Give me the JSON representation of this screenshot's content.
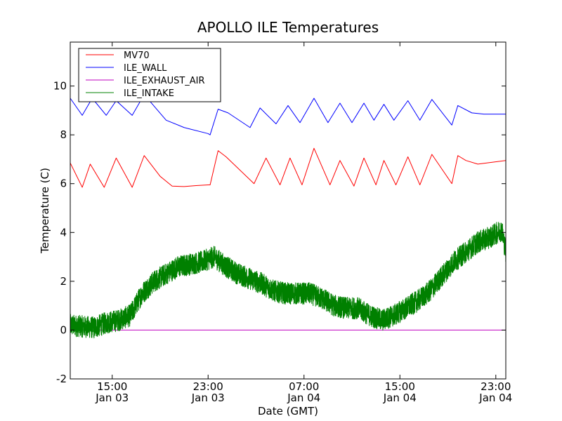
{
  "chart_data": {
    "type": "line",
    "title": "APOLLO ILE Temperatures",
    "xlabel": "Date (GMT)",
    "ylabel": "Temperature (C)",
    "xlim": [
      "2016-01-03 11:30",
      "2016-01-04 23:50"
    ],
    "ylim": [
      -2,
      11.8
    ],
    "yticks": [
      -2,
      0,
      2,
      4,
      6,
      8,
      10
    ],
    "ytick_labels": [
      "-2",
      "0",
      "2",
      "4",
      "6",
      "8",
      "10"
    ],
    "xticks": [
      {
        "t": "2016-01-03 15:00",
        "time": "15:00",
        "date": "Jan 03"
      },
      {
        "t": "2016-01-03 23:00",
        "time": "23:00",
        "date": "Jan 03"
      },
      {
        "t": "2016-01-04 07:00",
        "time": "07:00",
        "date": "Jan 04"
      },
      {
        "t": "2016-01-04 15:00",
        "time": "15:00",
        "date": "Jan 04"
      },
      {
        "t": "2016-01-04 23:00",
        "time": "23:00",
        "date": "Jan 04"
      }
    ],
    "legend_position": "top-left",
    "series": [
      {
        "name": "MV70",
        "color": "#ff0000",
        "points": [
          [
            "2016-01-03 11:30",
            6.85
          ],
          [
            "2016-01-03 12:30",
            5.85
          ],
          [
            "2016-01-03 13:10",
            6.8
          ],
          [
            "2016-01-03 14:20",
            5.85
          ],
          [
            "2016-01-03 15:20",
            7.05
          ],
          [
            "2016-01-03 16:40",
            5.85
          ],
          [
            "2016-01-03 17:40",
            7.15
          ],
          [
            "2016-01-03 19:00",
            6.3
          ],
          [
            "2016-01-03 20:00",
            5.9
          ],
          [
            "2016-01-03 21:00",
            5.88
          ],
          [
            "2016-01-03 22:00",
            5.92
          ],
          [
            "2016-01-03 23:00",
            5.95
          ],
          [
            "2016-01-03 23:10",
            5.95
          ],
          [
            "2016-01-03 23:50",
            7.35
          ],
          [
            "2016-01-04 00:30",
            7.1
          ],
          [
            "2016-01-04 02:50",
            6.0
          ],
          [
            "2016-01-04 03:50",
            7.05
          ],
          [
            "2016-01-04 05:00",
            5.95
          ],
          [
            "2016-01-04 05:50",
            7.05
          ],
          [
            "2016-01-04 06:50",
            5.95
          ],
          [
            "2016-01-04 07:50",
            7.45
          ],
          [
            "2016-01-04 09:10",
            5.95
          ],
          [
            "2016-01-04 10:00",
            6.95
          ],
          [
            "2016-01-04 11:10",
            5.9
          ],
          [
            "2016-01-04 12:00",
            7.05
          ],
          [
            "2016-01-04 13:00",
            5.95
          ],
          [
            "2016-01-04 13:40",
            6.95
          ],
          [
            "2016-01-04 14:40",
            5.95
          ],
          [
            "2016-01-04 15:40",
            7.1
          ],
          [
            "2016-01-04 16:40",
            5.95
          ],
          [
            "2016-01-04 17:40",
            7.2
          ],
          [
            "2016-01-04 19:20",
            6.0
          ],
          [
            "2016-01-04 19:50",
            7.15
          ],
          [
            "2016-01-04 20:30",
            6.95
          ],
          [
            "2016-01-04 21:30",
            6.8
          ],
          [
            "2016-01-04 23:50",
            6.95
          ]
        ]
      },
      {
        "name": "ILE_WALL",
        "color": "#0000ff",
        "points": [
          [
            "2016-01-03 11:30",
            9.5
          ],
          [
            "2016-01-03 12:30",
            8.8
          ],
          [
            "2016-01-03 13:20",
            9.5
          ],
          [
            "2016-01-03 14:30",
            8.8
          ],
          [
            "2016-01-03 15:20",
            9.4
          ],
          [
            "2016-01-03 16:40",
            8.8
          ],
          [
            "2016-01-03 17:40",
            9.65
          ],
          [
            "2016-01-03 19:30",
            8.6
          ],
          [
            "2016-01-03 21:00",
            8.3
          ],
          [
            "2016-01-03 23:00",
            8.05
          ],
          [
            "2016-01-03 23:10",
            8.0
          ],
          [
            "2016-01-03 23:50",
            9.05
          ],
          [
            "2016-01-04 00:40",
            8.9
          ],
          [
            "2016-01-04 02:30",
            8.3
          ],
          [
            "2016-01-04 03:20",
            9.1
          ],
          [
            "2016-01-04 04:40",
            8.45
          ],
          [
            "2016-01-04 05:40",
            9.2
          ],
          [
            "2016-01-04 06:40",
            8.5
          ],
          [
            "2016-01-04 07:50",
            9.5
          ],
          [
            "2016-01-04 09:00",
            8.5
          ],
          [
            "2016-01-04 10:00",
            9.3
          ],
          [
            "2016-01-04 11:00",
            8.5
          ],
          [
            "2016-01-04 12:00",
            9.3
          ],
          [
            "2016-01-04 12:50",
            8.6
          ],
          [
            "2016-01-04 13:40",
            9.25
          ],
          [
            "2016-01-04 14:30",
            8.6
          ],
          [
            "2016-01-04 15:40",
            9.4
          ],
          [
            "2016-01-04 16:40",
            8.6
          ],
          [
            "2016-01-04 17:40",
            9.45
          ],
          [
            "2016-01-04 19:20",
            8.4
          ],
          [
            "2016-01-04 19:50",
            9.2
          ],
          [
            "2016-01-04 21:00",
            8.9
          ],
          [
            "2016-01-04 22:00",
            8.85
          ],
          [
            "2016-01-04 23:50",
            8.85
          ]
        ]
      },
      {
        "name": "ILE_EXHAUST_AIR",
        "color": "#bf00bf",
        "points": [
          [
            "2016-01-03 11:30",
            0.0
          ],
          [
            "2016-01-04 23:50",
            0.0
          ]
        ]
      },
      {
        "name": "ILE_INTAKE",
        "color": "#008000",
        "noise": 0.45,
        "points": [
          [
            "2016-01-03 11:30",
            0.2
          ],
          [
            "2016-01-03 12:30",
            0.15
          ],
          [
            "2016-01-03 13:30",
            0.1
          ],
          [
            "2016-01-03 14:30",
            0.3
          ],
          [
            "2016-01-03 15:30",
            0.4
          ],
          [
            "2016-01-03 16:30",
            0.6
          ],
          [
            "2016-01-03 17:30",
            1.5
          ],
          [
            "2016-01-03 18:30",
            2.0
          ],
          [
            "2016-01-03 19:30",
            2.3
          ],
          [
            "2016-01-03 20:30",
            2.6
          ],
          [
            "2016-01-03 21:30",
            2.7
          ],
          [
            "2016-01-03 22:30",
            2.8
          ],
          [
            "2016-01-03 23:30",
            3.0
          ],
          [
            "2016-01-04 00:30",
            2.6
          ],
          [
            "2016-01-04 01:30",
            2.3
          ],
          [
            "2016-01-04 02:30",
            2.1
          ],
          [
            "2016-01-04 03:30",
            1.9
          ],
          [
            "2016-01-04 04:30",
            1.6
          ],
          [
            "2016-01-04 05:30",
            1.5
          ],
          [
            "2016-01-04 06:30",
            1.5
          ],
          [
            "2016-01-04 07:30",
            1.5
          ],
          [
            "2016-01-04 08:30",
            1.3
          ],
          [
            "2016-01-04 09:30",
            1.0
          ],
          [
            "2016-01-04 10:30",
            0.9
          ],
          [
            "2016-01-04 11:30",
            0.9
          ],
          [
            "2016-01-04 12:30",
            0.6
          ],
          [
            "2016-01-04 13:30",
            0.4
          ],
          [
            "2016-01-04 14:30",
            0.6
          ],
          [
            "2016-01-04 15:30",
            0.9
          ],
          [
            "2016-01-04 16:30",
            1.2
          ],
          [
            "2016-01-04 17:30",
            1.6
          ],
          [
            "2016-01-04 18:30",
            2.2
          ],
          [
            "2016-01-04 19:30",
            2.8
          ],
          [
            "2016-01-04 20:30",
            3.2
          ],
          [
            "2016-01-04 21:30",
            3.6
          ],
          [
            "2016-01-04 22:30",
            3.8
          ],
          [
            "2016-01-04 23:30",
            4.1
          ],
          [
            "2016-01-04 23:50",
            3.2
          ]
        ]
      }
    ]
  }
}
